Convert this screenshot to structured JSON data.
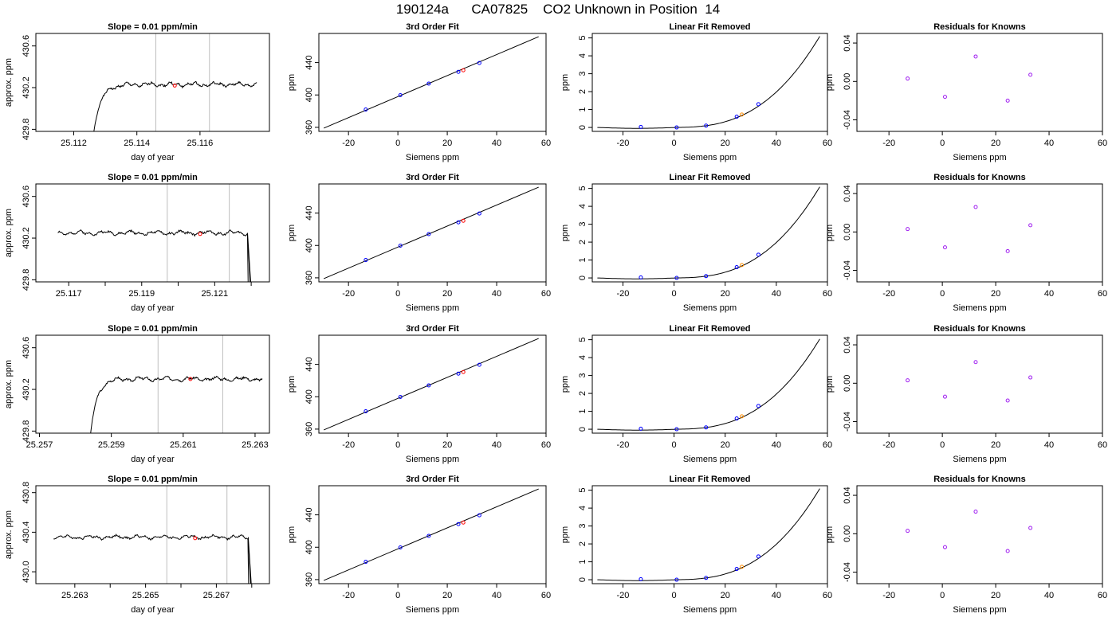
{
  "title": "190124a      CA07825    CO2 Unknown in Position  14",
  "chart_data": [
    {
      "panel": "time-series",
      "row": 1,
      "type": "line",
      "title": "Slope =  0.01  ppm/min",
      "xlabel": "day of year",
      "ylabel": "approx. ppm",
      "xlim": [
        25.1108,
        25.1182
      ],
      "ylim": [
        429.78,
        430.72
      ],
      "xticks": [
        25.112,
        25.114,
        25.116
      ],
      "xtick_labels": [
        "25.112",
        "25.114",
        "25.116"
      ],
      "yticks": [
        429.8,
        430.2,
        430.6
      ],
      "ytick_labels": [
        "429.8",
        "430.2",
        "430.6"
      ],
      "vlines": [
        25.1146,
        25.1163
      ],
      "trace": {
        "start": 25.1126,
        "end": 25.1178,
        "rise_from": 429.7,
        "plateau": 430.23,
        "rise_duration": 0.0009,
        "seed": 1
      },
      "marker": {
        "x": 25.1152,
        "y": 430.22
      }
    },
    {
      "panel": "fit",
      "row": 1,
      "type": "scatter",
      "title": "3rd Order Fit",
      "xlabel": "Siemens ppm",
      "ylabel": "ppm",
      "xlim": [
        -32,
        60
      ],
      "ylim": [
        355,
        476
      ],
      "xticks": [
        -20,
        0,
        20,
        40,
        60
      ],
      "xtick_labels": [
        "-20",
        "0",
        "20",
        "40",
        "60"
      ],
      "yticks": [
        360,
        400,
        440
      ],
      "ytick_labels": [
        "360",
        "400",
        "440"
      ],
      "line": {
        "x": [
          -30,
          57
        ],
        "y": [
          359,
          472
        ]
      },
      "points": {
        "x": [
          -13,
          1,
          12.5,
          24.5,
          33
        ],
        "y": [
          382,
          399.8,
          414,
          428.5,
          439.5
        ]
      },
      "unknown": {
        "x": 26.5,
        "y": 430.5
      }
    },
    {
      "panel": "linear-removed",
      "row": 1,
      "type": "line",
      "title": "Linear Fit Removed",
      "xlabel": "Siemens ppm",
      "ylabel": "ppm",
      "xlim": [
        -32,
        60
      ],
      "ylim": [
        -0.22,
        5.25
      ],
      "xticks": [
        -20,
        0,
        20,
        40,
        60
      ],
      "xtick_labels": [
        "-20",
        "0",
        "20",
        "40",
        "60"
      ],
      "yticks": [
        0,
        1,
        2,
        3,
        4,
        5
      ],
      "ytick_labels": [
        "0",
        "1",
        "2",
        "3",
        "4",
        "5"
      ],
      "curve": {
        "xstart": -30,
        "xend": 57,
        "y_end": 5.1
      },
      "points": {
        "x": [
          -13,
          1,
          12.5,
          24.5,
          33
        ],
        "y": [
          0.03,
          0,
          0.1,
          0.6,
          1.3
        ]
      },
      "unknown": {
        "x": 26.5,
        "y": 0.72
      }
    },
    {
      "panel": "residuals",
      "row": 1,
      "type": "scatter",
      "title": "Residuals for Knowns",
      "xlabel": "Siemens ppm",
      "ylabel": "ppm",
      "xlim": [
        -32,
        60
      ],
      "ylim": [
        -0.052,
        0.05
      ],
      "xticks": [
        -20,
        0,
        20,
        40,
        60
      ],
      "xtick_labels": [
        "-20",
        "0",
        "20",
        "40",
        "60"
      ],
      "yticks": [
        -0.04,
        0,
        0.04
      ],
      "ytick_labels": [
        "-0.04",
        "0.00",
        "0.04"
      ],
      "points": {
        "x": [
          -13,
          1,
          12.5,
          24.5,
          33
        ],
        "y": [
          0.003,
          -0.016,
          0.026,
          -0.02,
          0.007
        ]
      }
    },
    {
      "panel": "time-series",
      "row": 2,
      "type": "line",
      "title": "Slope =  0.01  ppm/min",
      "xlabel": "day of year",
      "ylabel": "approx. ppm",
      "xlim": [
        25.1161,
        25.1225
      ],
      "ylim": [
        429.78,
        430.72
      ],
      "xticks": [
        25.117,
        25.119,
        25.121
      ],
      "xtick_labels": [
        "25.117",
        "25.119",
        "25.121"
      ],
      "minor_xticks": [
        25.118,
        25.12,
        25.122
      ],
      "yticks": [
        429.8,
        430.2,
        430.6
      ],
      "ytick_labels": [
        "429.8",
        "430.2",
        "430.6"
      ],
      "vlines": [
        25.1197,
        25.1214
      ],
      "trace": {
        "start": 25.1167,
        "end": 25.122,
        "plateau": 430.25,
        "drop_at": 25.1219,
        "drop_to": 429.7,
        "seed": 2
      },
      "marker": {
        "x": 25.1206,
        "y": 430.24
      }
    },
    {
      "panel": "fit",
      "row": 2,
      "type": "scatter",
      "title": "3rd Order Fit",
      "xlabel": "Siemens ppm",
      "ylabel": "ppm",
      "xlim": [
        -32,
        60
      ],
      "ylim": [
        355,
        476
      ],
      "xticks": [
        -20,
        0,
        20,
        40,
        60
      ],
      "xtick_labels": [
        "-20",
        "0",
        "20",
        "40",
        "60"
      ],
      "yticks": [
        360,
        400,
        440
      ],
      "ytick_labels": [
        "360",
        "400",
        "440"
      ],
      "line": {
        "x": [
          -30,
          57
        ],
        "y": [
          359,
          472
        ]
      },
      "points": {
        "x": [
          -13,
          1,
          12.5,
          24.5,
          33
        ],
        "y": [
          382,
          399.8,
          414,
          428.5,
          439.5
        ]
      },
      "unknown": {
        "x": 26.5,
        "y": 430.5
      }
    },
    {
      "panel": "linear-removed",
      "row": 2,
      "type": "line",
      "title": "Linear Fit Removed",
      "xlabel": "Siemens ppm",
      "ylabel": "ppm",
      "xlim": [
        -32,
        60
      ],
      "ylim": [
        -0.22,
        5.25
      ],
      "xticks": [
        -20,
        0,
        20,
        40,
        60
      ],
      "xtick_labels": [
        "-20",
        "0",
        "20",
        "40",
        "60"
      ],
      "yticks": [
        0,
        1,
        2,
        3,
        4,
        5
      ],
      "ytick_labels": [
        "0",
        "1",
        "2",
        "3",
        "4",
        "5"
      ],
      "curve": {
        "xstart": -30,
        "xend": 57,
        "y_end": 5.1
      },
      "points": {
        "x": [
          -13,
          1,
          12.5,
          24.5,
          33
        ],
        "y": [
          0.03,
          0,
          0.1,
          0.6,
          1.3
        ]
      },
      "unknown": {
        "x": 26.5,
        "y": 0.72
      }
    },
    {
      "panel": "residuals",
      "row": 2,
      "type": "scatter",
      "title": "Residuals for Knowns",
      "xlabel": "Siemens ppm",
      "ylabel": "ppm",
      "xlim": [
        -32,
        60
      ],
      "ylim": [
        -0.052,
        0.05
      ],
      "xticks": [
        -20,
        0,
        20,
        40,
        60
      ],
      "xtick_labels": [
        "-20",
        "0",
        "20",
        "40",
        "60"
      ],
      "yticks": [
        -0.04,
        0,
        0.04
      ],
      "ytick_labels": [
        "-0.04",
        "0.00",
        "0.04"
      ],
      "points": {
        "x": [
          -13,
          1,
          12.5,
          24.5,
          33
        ],
        "y": [
          0.003,
          -0.016,
          0.026,
          -0.02,
          0.007
        ]
      }
    },
    {
      "panel": "time-series",
      "row": 3,
      "type": "line",
      "title": "Slope =  0.01  ppm/min",
      "xlabel": "day of year",
      "ylabel": "approx. ppm",
      "xlim": [
        25.2569,
        25.2634
      ],
      "ylim": [
        429.78,
        430.72
      ],
      "xticks": [
        25.257,
        25.259,
        25.261,
        25.263
      ],
      "xtick_labels": [
        "25.257",
        "25.259",
        "25.261",
        "25.263"
      ],
      "yticks": [
        429.8,
        430.2,
        430.6
      ],
      "ytick_labels": [
        "429.8",
        "430.2",
        "430.6"
      ],
      "vlines": [
        25.2603,
        25.2621
      ],
      "trace": {
        "start": 25.2584,
        "end": 25.2632,
        "rise_from": 429.7,
        "plateau": 430.3,
        "rise_duration": 0.0007,
        "seed": 3
      },
      "marker": {
        "x": 25.2612,
        "y": 430.3
      }
    },
    {
      "panel": "fit",
      "row": 3,
      "type": "scatter",
      "title": "3rd Order Fit",
      "xlabel": "Siemens ppm",
      "ylabel": "ppm",
      "xlim": [
        -32,
        60
      ],
      "ylim": [
        355,
        476
      ],
      "xticks": [
        -20,
        0,
        20,
        40,
        60
      ],
      "xtick_labels": [
        "-20",
        "0",
        "20",
        "40",
        "60"
      ],
      "yticks": [
        360,
        400,
        440
      ],
      "ytick_labels": [
        "360",
        "400",
        "440"
      ],
      "line": {
        "x": [
          -30,
          57
        ],
        "y": [
          359,
          472
        ]
      },
      "points": {
        "x": [
          -13,
          1,
          12.5,
          24.5,
          33
        ],
        "y": [
          382,
          399.8,
          414,
          428.5,
          439.5
        ]
      },
      "unknown": {
        "x": 26.5,
        "y": 430.5
      }
    },
    {
      "panel": "linear-removed",
      "row": 3,
      "type": "line",
      "title": "Linear Fit Removed",
      "xlabel": "Siemens ppm",
      "ylabel": "ppm",
      "xlim": [
        -32,
        60
      ],
      "ylim": [
        -0.22,
        5.25
      ],
      "xticks": [
        -20,
        0,
        20,
        40,
        60
      ],
      "xtick_labels": [
        "-20",
        "0",
        "20",
        "40",
        "60"
      ],
      "yticks": [
        0,
        1,
        2,
        3,
        4,
        5
      ],
      "ytick_labels": [
        "0",
        "1",
        "2",
        "3",
        "4",
        "5"
      ],
      "curve": {
        "xstart": -30,
        "xend": 57,
        "y_end": 5.05
      },
      "points": {
        "x": [
          -13,
          1,
          12.5,
          24.5,
          33
        ],
        "y": [
          0.03,
          0,
          0.1,
          0.6,
          1.3
        ]
      },
      "unknown": {
        "x": 26.5,
        "y": 0.72
      }
    },
    {
      "panel": "residuals",
      "row": 3,
      "type": "scatter",
      "title": "Residuals for Knowns",
      "xlabel": "Siemens ppm",
      "ylabel": "ppm",
      "xlim": [
        -32,
        60
      ],
      "ylim": [
        -0.052,
        0.05
      ],
      "xticks": [
        -20,
        0,
        20,
        40,
        60
      ],
      "xtick_labels": [
        "-20",
        "0",
        "20",
        "40",
        "60"
      ],
      "yticks": [
        -0.04,
        0,
        0.04
      ],
      "ytick_labels": [
        "-0.04",
        "0.00",
        "0.04"
      ],
      "points": {
        "x": [
          -13,
          1,
          12.5,
          24.5,
          33
        ],
        "y": [
          0.003,
          -0.014,
          0.022,
          -0.018,
          0.006
        ]
      }
    },
    {
      "panel": "time-series",
      "row": 4,
      "type": "line",
      "title": "Slope =  0.01  ppm/min",
      "xlabel": "day of year",
      "ylabel": "approx. ppm",
      "xlim": [
        25.2619,
        25.2685
      ],
      "ylim": [
        429.88,
        430.87
      ],
      "xticks": [
        25.263,
        25.265,
        25.267
      ],
      "xtick_labels": [
        "25.263",
        "25.265",
        "25.267"
      ],
      "minor_xticks": [
        25.264,
        25.266,
        25.268
      ],
      "yticks": [
        430.0,
        430.4,
        430.8
      ],
      "ytick_labels": [
        "430.0",
        "430.4",
        "430.8"
      ],
      "vlines": [
        25.2656,
        25.2673
      ],
      "trace": {
        "start": 25.2624,
        "end": 25.268,
        "plateau": 430.35,
        "drop_at": 25.2679,
        "drop_to": 429.8,
        "seed": 4
      },
      "marker": {
        "x": 25.2664,
        "y": 430.34
      }
    },
    {
      "panel": "fit",
      "row": 4,
      "type": "scatter",
      "title": "3rd Order Fit",
      "xlabel": "Siemens ppm",
      "ylabel": "ppm",
      "xlim": [
        -32,
        60
      ],
      "ylim": [
        355,
        476
      ],
      "xticks": [
        -20,
        0,
        20,
        40,
        60
      ],
      "xtick_labels": [
        "-20",
        "0",
        "20",
        "40",
        "60"
      ],
      "yticks": [
        360,
        400,
        440
      ],
      "ytick_labels": [
        "360",
        "400",
        "440"
      ],
      "line": {
        "x": [
          -30,
          57
        ],
        "y": [
          359,
          472
        ]
      },
      "points": {
        "x": [
          -13,
          1,
          12.5,
          24.5,
          33
        ],
        "y": [
          382,
          399.8,
          414,
          428.5,
          439.5
        ]
      },
      "unknown": {
        "x": 26.5,
        "y": 430.5
      }
    },
    {
      "panel": "linear-removed",
      "row": 4,
      "type": "line",
      "title": "Linear Fit Removed",
      "xlabel": "Siemens ppm",
      "ylabel": "ppm",
      "xlim": [
        -32,
        60
      ],
      "ylim": [
        -0.22,
        5.25
      ],
      "xticks": [
        -20,
        0,
        20,
        40,
        60
      ],
      "xtick_labels": [
        "-20",
        "0",
        "20",
        "40",
        "60"
      ],
      "yticks": [
        0,
        1,
        2,
        3,
        4,
        5
      ],
      "ytick_labels": [
        "0",
        "1",
        "2",
        "3",
        "4",
        "5"
      ],
      "curve": {
        "xstart": -30,
        "xend": 57,
        "y_end": 5.1
      },
      "points": {
        "x": [
          -13,
          1,
          12.5,
          24.5,
          33
        ],
        "y": [
          0.03,
          0,
          0.1,
          0.6,
          1.3
        ]
      },
      "unknown": {
        "x": 26.5,
        "y": 0.72
      }
    },
    {
      "panel": "residuals",
      "row": 4,
      "type": "scatter",
      "title": "Residuals for Knowns",
      "xlabel": "Siemens ppm",
      "ylabel": "ppm",
      "xlim": [
        -32,
        60
      ],
      "ylim": [
        -0.052,
        0.05
      ],
      "xticks": [
        -20,
        0,
        20,
        40,
        60
      ],
      "xtick_labels": [
        "-20",
        "0",
        "20",
        "40",
        "60"
      ],
      "yticks": [
        -0.04,
        0,
        0.04
      ],
      "ytick_labels": [
        "-0.04",
        "0.00",
        "0.04"
      ],
      "points": {
        "x": [
          -13,
          1,
          12.5,
          24.5,
          33
        ],
        "y": [
          0.003,
          -0.014,
          0.023,
          -0.018,
          0.006
        ]
      }
    }
  ],
  "colors": {
    "trace": "#000000",
    "vline": "#bebebe",
    "known_points": "#0000ff",
    "unknown_point": "#ff0000",
    "unknown_point_linear": "#ff8c00",
    "residual_points": "#a020f0"
  }
}
